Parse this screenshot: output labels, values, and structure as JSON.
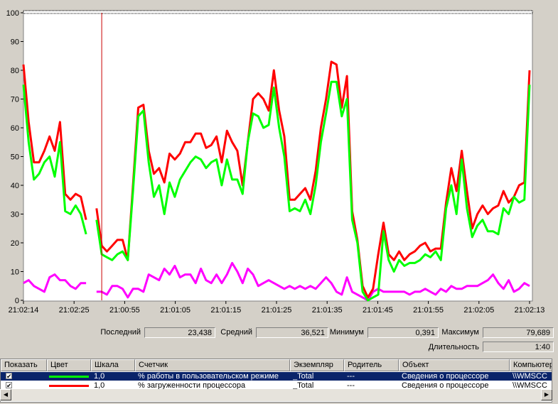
{
  "chart_data": {
    "type": "line",
    "ylim": [
      0,
      100
    ],
    "y_ticks": [
      "0",
      "10",
      "20",
      "30",
      "40",
      "50",
      "60",
      "70",
      "80",
      "90",
      "100"
    ],
    "x_ticks": [
      "21:02:14",
      "21:02:25",
      "21:00:55",
      "21:01:05",
      "21:01:15",
      "21:01:25",
      "21:01:35",
      "21:01:45",
      "21:01:55",
      "21:02:05",
      "21:02:13"
    ],
    "grid": false,
    "time_marker_index": 15,
    "series": [
      {
        "name": "% работы в пользовательском режиме",
        "color": "#00ff00",
        "values": [
          75,
          55,
          42,
          44,
          48,
          50,
          43,
          55,
          31,
          30,
          33,
          30,
          23,
          null,
          28,
          16,
          15,
          14,
          16,
          17,
          14,
          38,
          64,
          66,
          48,
          36,
          40,
          30,
          41,
          36,
          42,
          45,
          48,
          50,
          49,
          46,
          48,
          49,
          40,
          49,
          42,
          42,
          37,
          55,
          65,
          64,
          60,
          61,
          74,
          60,
          50,
          31,
          32,
          31,
          35,
          30,
          40,
          55,
          65,
          76,
          76,
          64,
          70,
          28,
          20,
          3,
          0,
          1,
          2,
          24,
          14,
          10,
          14,
          12,
          13,
          13,
          14,
          16,
          15,
          17,
          14,
          32,
          40,
          30,
          49,
          32,
          22,
          26,
          28,
          24,
          24,
          23,
          32,
          30,
          36,
          34,
          35,
          75
        ]
      },
      {
        "name": "% загруженности процессора",
        "color": "#ff0000",
        "values": [
          82,
          62,
          48,
          48,
          52,
          57,
          52,
          62,
          37,
          35,
          37,
          36,
          28,
          null,
          32,
          19,
          17,
          19,
          21,
          21,
          14,
          40,
          67,
          68,
          52,
          44,
          46,
          41,
          51,
          49,
          51,
          55,
          55,
          58,
          58,
          53,
          54,
          57,
          48,
          59,
          55,
          52,
          40,
          55,
          70,
          72,
          70,
          66,
          80,
          66,
          57,
          35,
          35,
          37,
          39,
          35,
          45,
          60,
          70,
          83,
          82,
          67,
          78,
          31,
          21,
          5,
          1,
          4,
          16,
          27,
          16,
          14,
          17,
          14,
          16,
          17,
          19,
          20,
          17,
          18,
          18,
          34,
          46,
          38,
          52,
          38,
          25,
          30,
          33,
          30,
          32,
          33,
          38,
          34,
          36,
          40,
          41,
          80
        ]
      },
      {
        "name": "",
        "color": "#ff00ff",
        "values": [
          6,
          7,
          5,
          4,
          3,
          8,
          9,
          7,
          7,
          5,
          4,
          6,
          6,
          null,
          3,
          3,
          2,
          5,
          5,
          4,
          1,
          4,
          4,
          3,
          9,
          8,
          7,
          11,
          9,
          12,
          8,
          9,
          9,
          6,
          11,
          7,
          6,
          9,
          6,
          9,
          13,
          10,
          6,
          11,
          9,
          5,
          6,
          7,
          6,
          5,
          4,
          5,
          4,
          5,
          4,
          5,
          4,
          6,
          8,
          6,
          3,
          2,
          8,
          3,
          2,
          1,
          0,
          3,
          4,
          3,
          3,
          3,
          3,
          3,
          2,
          3,
          3,
          4,
          3,
          2,
          4,
          3,
          5,
          4,
          4,
          5,
          5,
          5,
          6,
          7,
          9,
          6,
          4,
          7,
          3,
          4,
          6,
          5
        ]
      }
    ]
  },
  "stats": {
    "last_label": "Последний",
    "last_value": "23,438",
    "avg_label": "Средний",
    "avg_value": "36,521",
    "min_label": "Минимум",
    "min_value": "0,391",
    "max_label": "Максимум",
    "max_value": "79,689",
    "duration_label": "Длительность",
    "duration_value": "1:40"
  },
  "table": {
    "headers": [
      "Показать",
      "Цвет",
      "Шкала",
      "Счетчик",
      "Экземпляр",
      "Родитель",
      "Объект",
      "Компьютер"
    ],
    "rows": [
      {
        "checked": true,
        "color": "#00ff00",
        "scale": "1,0",
        "counter": "% работы в пользовательском режиме",
        "instance": "_Total",
        "parent": "---",
        "object": "Сведения о процессоре",
        "computer": "\\\\WMSCC"
      },
      {
        "checked": true,
        "color": "#ff0000",
        "scale": "1,0",
        "counter": "% загруженности процессора",
        "instance": "_Total",
        "parent": "---",
        "object": "Сведения о процессоре",
        "computer": "\\\\WMSCC"
      }
    ]
  }
}
